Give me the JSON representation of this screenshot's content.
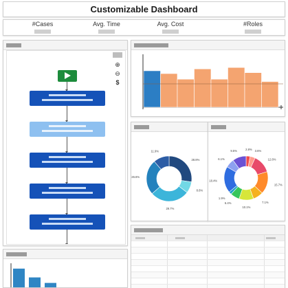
{
  "app": {
    "title": "Customizable Dashboard"
  },
  "kpis": [
    {
      "label": "#Cases"
    },
    {
      "label": "Avg. Time"
    },
    {
      "label": "Avg. Cost"
    },
    {
      "label": "#Roles"
    }
  ],
  "process": {
    "steps": [
      "activity",
      "activity-selected",
      "activity",
      "activity",
      "activity",
      "activity"
    ],
    "tools": [
      "zoom-in-icon",
      "zoom-out-icon",
      "dollar-icon"
    ],
    "tool_glyphs": {
      "zoom_in": "⊕",
      "zoom_out": "⊖",
      "dollar": "$"
    }
  },
  "colors": {
    "step": "#1552b8",
    "step_selected": "#8ec0f0",
    "start": "#1d8c3c",
    "bar": "#f4a470",
    "bar_selected": "#2c7ec4",
    "hist": "#2f86c4"
  },
  "chart_data": [
    {
      "type": "bar",
      "values": [
        0.78,
        0.72,
        0.6,
        0.82,
        0.6,
        0.85,
        0.74,
        0.55
      ],
      "highlight_index": 0,
      "scale": "relative"
    },
    {
      "type": "pie",
      "style": "donut",
      "labels": [
        "28.8%",
        "8.6%",
        "29.7%",
        "26.6%",
        "11.9%"
      ],
      "values": [
        28.8,
        8.6,
        29.7,
        26.6,
        11.9
      ],
      "colors": [
        "#21497f",
        "#72d8e6",
        "#3cb5da",
        "#2482bd",
        "#2d5da5"
      ]
    },
    {
      "type": "pie",
      "style": "donut",
      "labels": [
        "2.8%",
        "3.6%",
        "12.8%",
        "15.7%",
        "7.1%",
        "10.1%",
        "6.4%",
        "1.9%",
        "18.4%",
        "6.1%",
        "9.5%"
      ],
      "values": [
        2.8,
        3.6,
        12.8,
        15.7,
        7.1,
        10.1,
        6.4,
        1.9,
        18.4,
        6.1,
        9.5
      ],
      "colors": [
        "#f24b4b",
        "#ff9a8c",
        "#e84a6a",
        "#ff8a2a",
        "#f5b11f",
        "#d7e63a",
        "#37c65b",
        "#1fa0c8",
        "#2f6de0",
        "#8da0f0",
        "#6b52d4"
      ]
    },
    {
      "type": "bar",
      "values": [
        0.85,
        0.45,
        0.2
      ],
      "scale": "relative"
    }
  ],
  "table": {
    "columns": 4,
    "rows": 9
  }
}
